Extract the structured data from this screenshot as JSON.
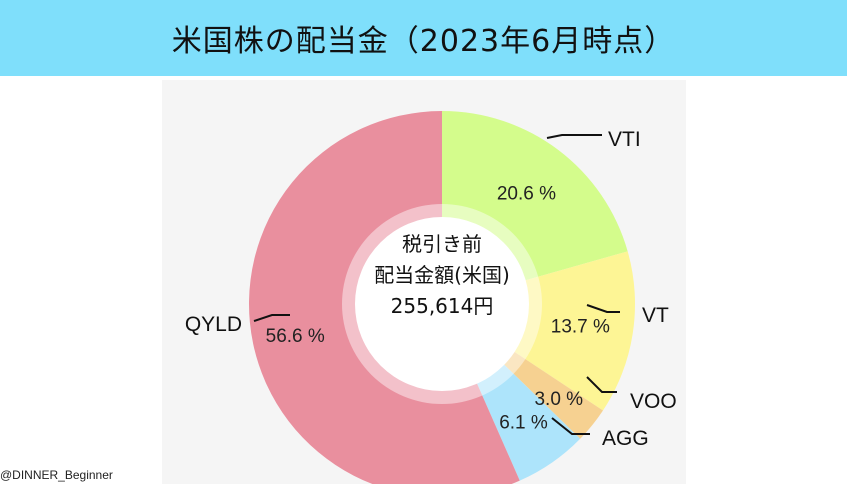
{
  "header": {
    "title": "米国株の配当金（2023年6月時点）",
    "background": "#7fdffb"
  },
  "chart_data": {
    "type": "pie",
    "variant": "donut",
    "center_label": [
      "税引き前",
      "配当金額(米国)",
      "255,614円"
    ],
    "start_angle": "12 o'clock",
    "direction": "clockwise",
    "slices": [
      {
        "label": "VTI",
        "value": 20.6,
        "value_label": "20.6 %",
        "color": "#d4fc8c"
      },
      {
        "label": "VT",
        "value": 13.7,
        "value_label": "13.7 %",
        "color": "#fdf595"
      },
      {
        "label": "VOO",
        "value": 3.0,
        "value_label": "3.0 %",
        "color": "#f6d191"
      },
      {
        "label": "AGG",
        "value": 6.1,
        "value_label": "6.1 %",
        "color": "#ade4fb"
      },
      {
        "label": "QYLD",
        "value": 56.6,
        "value_label": "56.6 %",
        "color": "#e98f9e"
      }
    ]
  },
  "footer": {
    "credit": "@DINNER_Beginner"
  }
}
